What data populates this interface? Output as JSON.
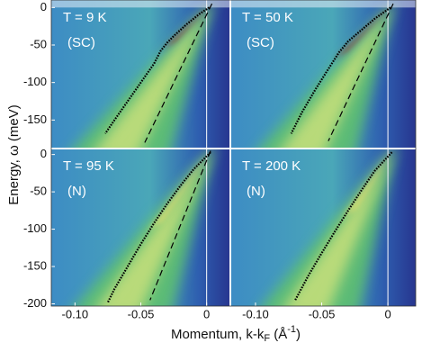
{
  "figure": {
    "ylabel": "Energy, ω (meV)",
    "xlabel": {
      "main": "Momentum, k-k",
      "sub": "F",
      "unit": " (Å",
      "sup": "-1",
      "close": ")"
    }
  },
  "chart_data": [
    {
      "type": "heatmap",
      "title": "T = 9 K",
      "subtitle": "(SC)",
      "xlim": [
        -0.118,
        0.018
      ],
      "ylim": [
        -188,
        10
      ],
      "yticks": [
        0,
        -50,
        -100,
        -150
      ],
      "dispersion": {
        "color": "#000000",
        "x": [
          0.002,
          -0.005,
          -0.01,
          -0.015,
          -0.02,
          -0.025,
          -0.03,
          -0.035,
          -0.04,
          -0.05,
          -0.06,
          -0.07,
          -0.077
        ],
        "values": [
          0,
          -8,
          -15,
          -22,
          -30,
          -38,
          -47,
          -58,
          -75,
          -100,
          -125,
          -150,
          -168
        ]
      },
      "bare_band": {
        "color": "#000000",
        "x": [
          0.004,
          -0.047
        ],
        "values": [
          5,
          -180
        ]
      }
    },
    {
      "type": "heatmap",
      "title": "T = 50 K",
      "subtitle": "(SC)",
      "xlim": [
        -0.119,
        0.021
      ],
      "ylim": [
        -188,
        10
      ],
      "dispersion": {
        "color": "#000000",
        "x": [
          0.002,
          -0.01,
          -0.02,
          -0.03,
          -0.037,
          -0.045,
          -0.055,
          -0.065,
          -0.073
        ],
        "values": [
          0,
          -15,
          -30,
          -45,
          -60,
          -82,
          -110,
          -140,
          -168
        ]
      },
      "bare_band": {
        "color": "#000000",
        "x": [
          0.004,
          -0.045
        ],
        "values": [
          5,
          -178
        ]
      }
    },
    {
      "type": "heatmap",
      "title": "T = 95 K",
      "subtitle": "(N)",
      "xlim": [
        -0.118,
        0.018
      ],
      "ylim": [
        -203,
        8
      ],
      "yticks": [
        0,
        -50,
        -100,
        -150,
        -200
      ],
      "xticks": [
        {
          "value": -0.1,
          "label": "-0.10"
        },
        -0.05,
        0
      ],
      "dispersion": {
        "color": "#000000",
        "x": [
          0.003,
          -0.01,
          -0.02,
          -0.03,
          -0.04,
          -0.05,
          -0.06,
          -0.07,
          -0.075
        ],
        "values": [
          3,
          -20,
          -42,
          -66,
          -92,
          -120,
          -150,
          -180,
          -198
        ]
      },
      "bare_band": {
        "color": "#000000",
        "x": [
          0.003,
          -0.043
        ],
        "values": [
          5,
          -195
        ]
      }
    },
    {
      "type": "heatmap",
      "title": "T = 200 K",
      "subtitle": "(N)",
      "xlim": [
        -0.119,
        0.021
      ],
      "ylim": [
        -203,
        8
      ],
      "xticks": [
        {
          "value": -0.1,
          "label": "-0.10"
        },
        -0.05,
        0
      ],
      "dispersion": {
        "color": "#000000",
        "x": [
          0.003,
          -0.01,
          -0.02,
          -0.03,
          -0.04,
          -0.05,
          -0.06,
          -0.07
        ],
        "values": [
          3,
          -22,
          -48,
          -75,
          -103,
          -132,
          -162,
          -195
        ]
      }
    }
  ]
}
